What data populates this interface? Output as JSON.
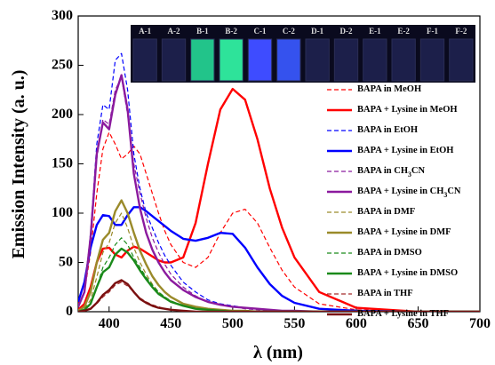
{
  "chart_data": {
    "type": "line",
    "xlabel": "λ (nm)",
    "ylabel": "Emission Intensity (a. u.)",
    "xlim": [
      375,
      700
    ],
    "ylim": [
      0,
      300
    ],
    "xticks": [
      400,
      450,
      500,
      550,
      600,
      650,
      700
    ],
    "yticks": [
      0,
      50,
      100,
      150,
      200,
      250,
      300
    ],
    "legend_position": "right",
    "inset_labels": [
      "A-1",
      "A-2",
      "B-1",
      "B-2",
      "C-1",
      "C-2",
      "D-1",
      "D-2",
      "E-1",
      "E-2",
      "F-1",
      "F-2"
    ],
    "x": [
      375,
      380,
      385,
      390,
      395,
      400,
      405,
      410,
      415,
      420,
      425,
      430,
      435,
      440,
      445,
      450,
      460,
      470,
      480,
      490,
      500,
      510,
      520,
      530,
      540,
      550,
      570,
      600,
      650,
      700
    ],
    "series": [
      {
        "name": "BAPA in MeOH",
        "color": "#ff0000",
        "style": "dashed",
        "values": [
          8,
          20,
          60,
          120,
          165,
          182,
          170,
          155,
          160,
          168,
          160,
          140,
          120,
          100,
          82,
          68,
          50,
          45,
          55,
          80,
          100,
          104,
          90,
          65,
          42,
          25,
          8,
          2,
          0,
          0
        ]
      },
      {
        "name": "BAPA + Lysine in MeOH",
        "color": "#ff0000",
        "style": "solid",
        "values": [
          2,
          8,
          25,
          50,
          64,
          65,
          58,
          55,
          62,
          66,
          64,
          60,
          56,
          52,
          50,
          50,
          55,
          90,
          150,
          205,
          226,
          215,
          175,
          125,
          85,
          55,
          20,
          4,
          0,
          0
        ]
      },
      {
        "name": "BAPA in EtOH",
        "color": "#0000ff",
        "style": "dashed",
        "values": [
          5,
          20,
          80,
          170,
          210,
          205,
          255,
          262,
          225,
          160,
          125,
          100,
          85,
          70,
          57,
          47,
          30,
          20,
          12,
          8,
          6,
          4,
          3,
          2,
          1,
          1,
          0,
          0,
          0,
          0
        ]
      },
      {
        "name": "BAPA + Lysine in EtOH",
        "color": "#0000ff",
        "style": "solid",
        "values": [
          10,
          30,
          65,
          88,
          98,
          97,
          88,
          88,
          98,
          106,
          106,
          102,
          97,
          92,
          87,
          82,
          74,
          72,
          75,
          80,
          79,
          65,
          45,
          28,
          16,
          9,
          3,
          1,
          0,
          0
        ]
      },
      {
        "name": "BAPA in CH3CN",
        "color": "#8b1a9e",
        "style": "dashed",
        "values": [
          5,
          20,
          70,
          155,
          195,
          190,
          225,
          238,
          200,
          150,
          120,
          95,
          75,
          60,
          48,
          38,
          25,
          16,
          10,
          7,
          5,
          3,
          2,
          1,
          1,
          0,
          0,
          0,
          0,
          0
        ]
      },
      {
        "name": "BAPA + Lysine in CH3CN",
        "color": "#8b1a9e",
        "style": "solid",
        "values": [
          5,
          20,
          75,
          160,
          192,
          185,
          220,
          240,
          205,
          140,
          105,
          80,
          63,
          50,
          40,
          32,
          22,
          15,
          10,
          7,
          5,
          4,
          3,
          2,
          1,
          1,
          0,
          0,
          0,
          0
        ]
      },
      {
        "name": "BAPA in DMF",
        "color": "#9a8a2a",
        "style": "dashed",
        "values": [
          0,
          3,
          12,
          35,
          60,
          70,
          90,
          100,
          85,
          65,
          50,
          38,
          28,
          20,
          15,
          11,
          6,
          3,
          2,
          1,
          1,
          0,
          0,
          0,
          0,
          0,
          0,
          0,
          0,
          0
        ]
      },
      {
        "name": "BAPA + Lysine in DMF",
        "color": "#9a8a2a",
        "style": "solid",
        "values": [
          1,
          5,
          20,
          50,
          73,
          80,
          102,
          113,
          100,
          80,
          62,
          48,
          36,
          27,
          20,
          15,
          8,
          5,
          3,
          2,
          1,
          1,
          0,
          0,
          0,
          0,
          0,
          0,
          0,
          0
        ]
      },
      {
        "name": "BAPA in DMSO",
        "color": "#1a8a1a",
        "style": "dashed",
        "values": [
          0,
          2,
          8,
          25,
          45,
          55,
          68,
          75,
          68,
          55,
          45,
          35,
          27,
          20,
          15,
          11,
          6,
          3,
          2,
          1,
          0,
          0,
          0,
          0,
          0,
          0,
          0,
          0,
          0,
          0
        ]
      },
      {
        "name": "BAPA + Lysine in DMSO",
        "color": "#1a8a1a",
        "style": "solid",
        "values": [
          0,
          2,
          8,
          25,
          40,
          45,
          58,
          64,
          60,
          52,
          42,
          33,
          25,
          18,
          14,
          10,
          6,
          3,
          2,
          1,
          0,
          0,
          0,
          0,
          0,
          0,
          0,
          0,
          0,
          0
        ]
      },
      {
        "name": "BAPA in THF",
        "color": "#a52a2a",
        "style": "dashed",
        "values": [
          0,
          1,
          3,
          8,
          15,
          20,
          27,
          30,
          26,
          20,
          14,
          10,
          7,
          5,
          3,
          2,
          1,
          0,
          0,
          0,
          0,
          0,
          0,
          0,
          0,
          0,
          0,
          0,
          0,
          0
        ]
      },
      {
        "name": "BAPA + Lysine in THF",
        "color": "#7a1010",
        "style": "solid",
        "values": [
          0,
          1,
          3,
          9,
          17,
          22,
          29,
          32,
          28,
          20,
          13,
          9,
          6,
          4,
          3,
          2,
          1,
          0,
          0,
          0,
          0,
          0,
          0,
          0,
          0,
          0,
          0,
          0,
          0,
          0
        ]
      }
    ]
  }
}
